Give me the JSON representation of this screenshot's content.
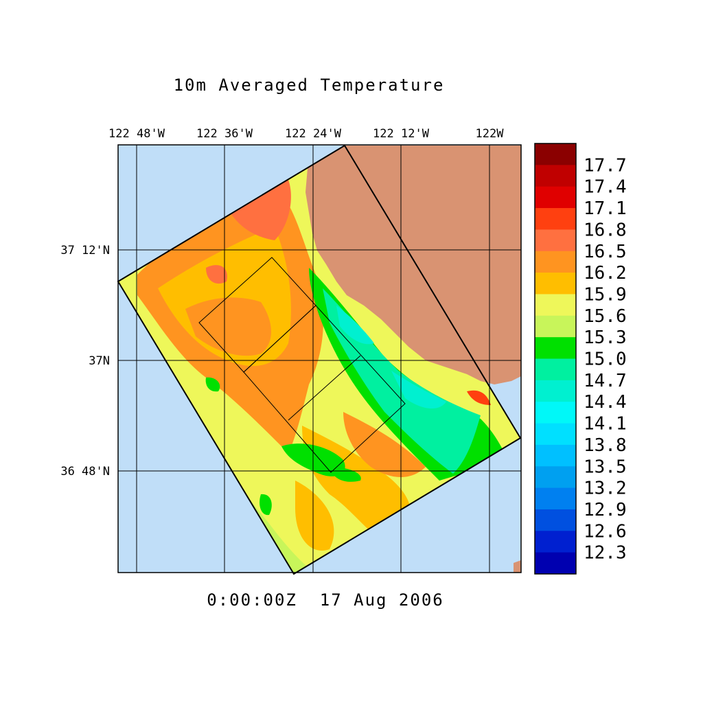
{
  "title": "10m Averaged Temperature",
  "timestamp": "0:00:00Z  17 Aug 2006",
  "lon_labels": [
    "122 48'W",
    "122 36'W",
    "122 24'W",
    "122 12'W",
    "122W"
  ],
  "lat_labels": [
    "37 12'N",
    "37N",
    "36 48'N"
  ],
  "colorbar": {
    "labels": [
      "17.7",
      "17.4",
      "17.1",
      "16.8",
      "16.5",
      "16.2",
      "15.9",
      "15.6",
      "15.3",
      "15.0",
      "14.7",
      "14.4",
      "14.1",
      "13.8",
      "13.5",
      "13.2",
      "12.9",
      "12.6",
      "12.3"
    ],
    "colors": [
      "#8b0000",
      "#c00000",
      "#e00000",
      "#ff4010",
      "#ff7040",
      "#ff9420",
      "#ffbe00",
      "#eef75a",
      "#c8f55a",
      "#00e000",
      "#00f0a0",
      "#00f0d0",
      "#00f8f8",
      "#00e0ff",
      "#00c0ff",
      "#00a0f0",
      "#0080f0",
      "#0050e0",
      "#0020d0",
      "#0000b0"
    ]
  },
  "colors": {
    "ocean": "#c0def8",
    "land": "#d99372"
  }
}
